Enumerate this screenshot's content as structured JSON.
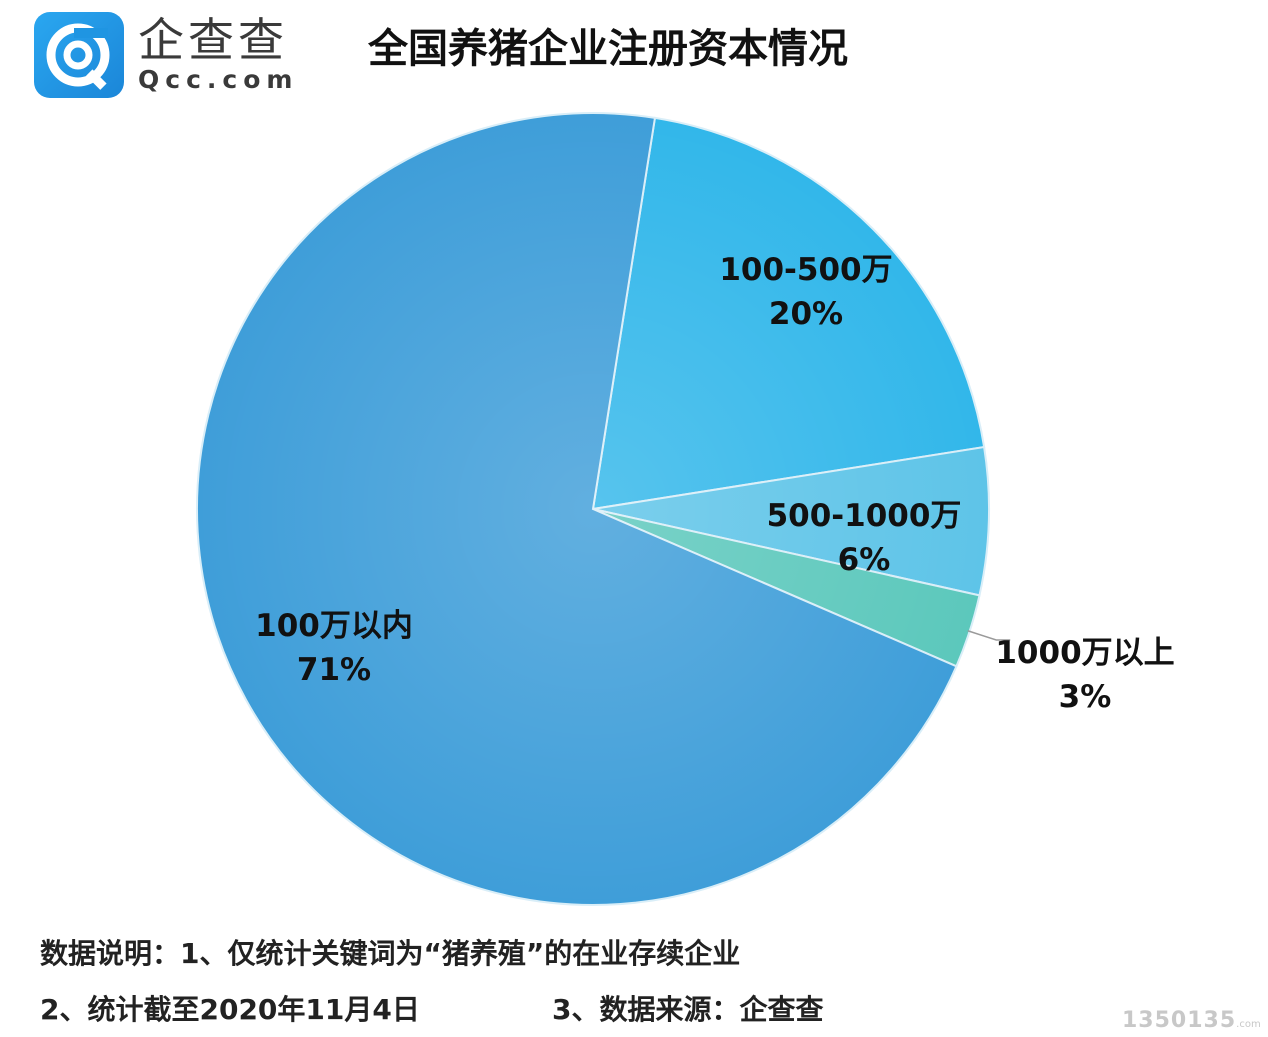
{
  "logo": {
    "icon": "qcc-logo-icon",
    "name_cn": "企查查",
    "name_en": "Qcc.com"
  },
  "chart_data": {
    "type": "pie",
    "title": "全国养猪企业注册资本情况",
    "slices": [
      {
        "name": "100-500万",
        "value": 20,
        "label": "20%",
        "color": "#32b7ea"
      },
      {
        "name": "500-1000万",
        "value": 6,
        "label": "6%",
        "color": "#5ec4e8"
      },
      {
        "name": "1000万以上",
        "value": 3,
        "label": "3%",
        "color": "#5cc8bc"
      },
      {
        "name": "100万以内",
        "value": 71,
        "label": "71%",
        "color": "#3f9ed9"
      }
    ],
    "legend": "none"
  },
  "notes": {
    "line1": "数据说明：1、仅统计关键词为“猪养殖”的在业存续企业",
    "line2": "2、统计截至2020年11月4日",
    "line3": "3、数据来源：企查查"
  },
  "watermark": {
    "number": "1350135",
    "suffix": ".com"
  }
}
